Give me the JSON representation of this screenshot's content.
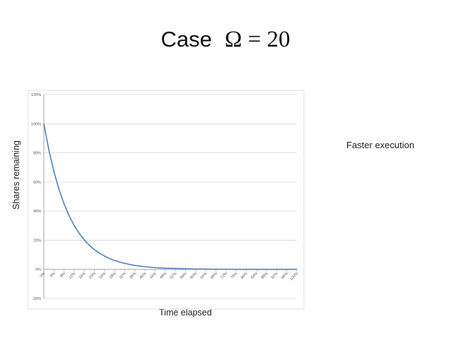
{
  "slide": {
    "title_word": "Case",
    "title_formula": "Ω = 20",
    "annotation": "Faster execution"
  },
  "chart_data": {
    "type": "line",
    "xlabel": "Time elapsed",
    "ylabel": "Shares remaining",
    "x_ticks": [
      "0%",
      "4%",
      "8%",
      "12%",
      "16%",
      "20%",
      "24%",
      "28%",
      "32%",
      "36%",
      "40%",
      "44%",
      "48%",
      "52%",
      "56%",
      "60%",
      "64%",
      "68%",
      "72%",
      "76%",
      "80%",
      "84%",
      "88%",
      "92%",
      "96%",
      "100%"
    ],
    "y_ticks": [
      "-20%",
      "0%",
      "20%",
      "40%",
      "60%",
      "80%",
      "100%",
      "120%"
    ],
    "ylim": [
      -20,
      120
    ],
    "xlim": [
      0,
      100
    ],
    "grid": true,
    "series": [
      {
        "color": "#4f81bd",
        "x": [
          0,
          2,
          4,
          6,
          8,
          10,
          12,
          14,
          16,
          18,
          20,
          22,
          24,
          26,
          28,
          30,
          32,
          34,
          36,
          38,
          40,
          42,
          44,
          46,
          48,
          50,
          52,
          54,
          56,
          58,
          60,
          62,
          64,
          66,
          68,
          70,
          72,
          74,
          76,
          78,
          80,
          82,
          84,
          86,
          88,
          90,
          92,
          94,
          96,
          98,
          100
        ],
        "y": [
          100,
          81.9,
          67.0,
          54.9,
          44.9,
          36.8,
          30.1,
          24.7,
          20.2,
          16.5,
          13.5,
          11.1,
          9.1,
          7.4,
          6.1,
          5.0,
          4.1,
          3.3,
          2.7,
          2.2,
          1.8,
          1.5,
          1.2,
          1.0,
          0.8,
          0.7,
          0.6,
          0.5,
          0.4,
          0.3,
          0.2,
          0.2,
          0.2,
          0.1,
          0.1,
          0.1,
          0.1,
          0.1,
          0,
          0,
          0,
          0,
          0,
          0,
          0,
          0,
          0,
          0,
          0,
          0,
          0
        ]
      }
    ]
  }
}
